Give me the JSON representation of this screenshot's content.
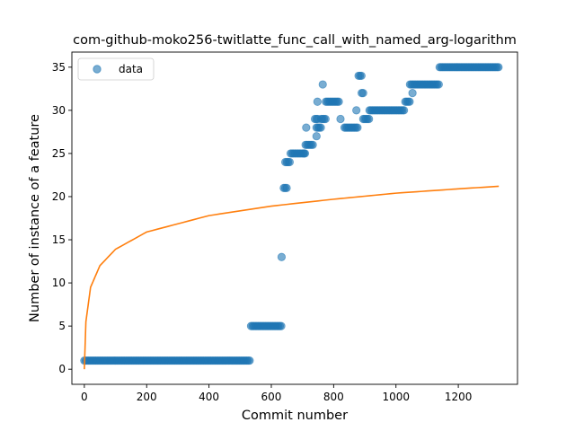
{
  "chart_data": {
    "type": "scatter",
    "title": "com-github-moko256-twitlatte_func_call_with_named_arg-logarithm",
    "xlabel": "Commit number",
    "ylabel": "Number of instance of a feature",
    "xlim": [
      -40,
      1390
    ],
    "ylim": [
      -1.75,
      36.75
    ],
    "xticks": [
      0,
      200,
      400,
      600,
      800,
      1000,
      1200
    ],
    "yticks": [
      0,
      5,
      10,
      15,
      20,
      25,
      30,
      35
    ],
    "grid": false,
    "legend": {
      "placement": "top-left",
      "entries": [
        "data"
      ]
    },
    "series": [
      {
        "name": "data",
        "kind": "scatter",
        "color": "#1f77b4",
        "alpha": 0.6,
        "segments": [
          {
            "x_start": 0,
            "x_end": 535,
            "y": 1
          },
          {
            "x_start": 535,
            "x_end": 633,
            "y": 5
          },
          {
            "x_start": 640,
            "x_end": 650,
            "y": 21
          },
          {
            "x_start": 645,
            "x_end": 660,
            "y": 24
          },
          {
            "x_start": 662,
            "x_end": 710,
            "y": 25
          },
          {
            "x_start": 710,
            "x_end": 735,
            "y": 26
          },
          {
            "x_start": 745,
            "x_end": 760,
            "y": 28
          },
          {
            "x_start": 740,
            "x_end": 750,
            "y": 29
          },
          {
            "x_start": 760,
            "x_end": 775,
            "y": 29
          },
          {
            "x_start": 775,
            "x_end": 820,
            "y": 31
          },
          {
            "x_start": 835,
            "x_end": 880,
            "y": 28
          },
          {
            "x_start": 880,
            "x_end": 890,
            "y": 34
          },
          {
            "x_start": 890,
            "x_end": 898,
            "y": 32
          },
          {
            "x_start": 895,
            "x_end": 915,
            "y": 29
          },
          {
            "x_start": 915,
            "x_end": 1030,
            "y": 30
          },
          {
            "x_start": 1030,
            "x_end": 1045,
            "y": 31
          },
          {
            "x_start": 1045,
            "x_end": 1140,
            "y": 33
          },
          {
            "x_start": 1140,
            "x_end": 1330,
            "y": 35
          }
        ],
        "points": [
          {
            "x": 633,
            "y": 13
          },
          {
            "x": 705,
            "y": 25
          },
          {
            "x": 712,
            "y": 28
          },
          {
            "x": 745,
            "y": 27
          },
          {
            "x": 748,
            "y": 31
          },
          {
            "x": 765,
            "y": 33
          },
          {
            "x": 822,
            "y": 29
          },
          {
            "x": 873,
            "y": 30
          },
          {
            "x": 1053,
            "y": 32
          }
        ]
      },
      {
        "name": "",
        "kind": "line",
        "color": "#ff7f0e",
        "model": "logarithmic fit",
        "x_range": [
          0,
          1330
        ],
        "samples": [
          {
            "x": 0,
            "y": 0.0
          },
          {
            "x": 5,
            "y": 5.5
          },
          {
            "x": 20,
            "y": 9.5
          },
          {
            "x": 50,
            "y": 12.0
          },
          {
            "x": 100,
            "y": 13.9
          },
          {
            "x": 200,
            "y": 15.9
          },
          {
            "x": 400,
            "y": 17.8
          },
          {
            "x": 600,
            "y": 18.9
          },
          {
            "x": 800,
            "y": 19.7
          },
          {
            "x": 1000,
            "y": 20.4
          },
          {
            "x": 1200,
            "y": 20.9
          },
          {
            "x": 1330,
            "y": 21.2
          }
        ]
      }
    ]
  }
}
